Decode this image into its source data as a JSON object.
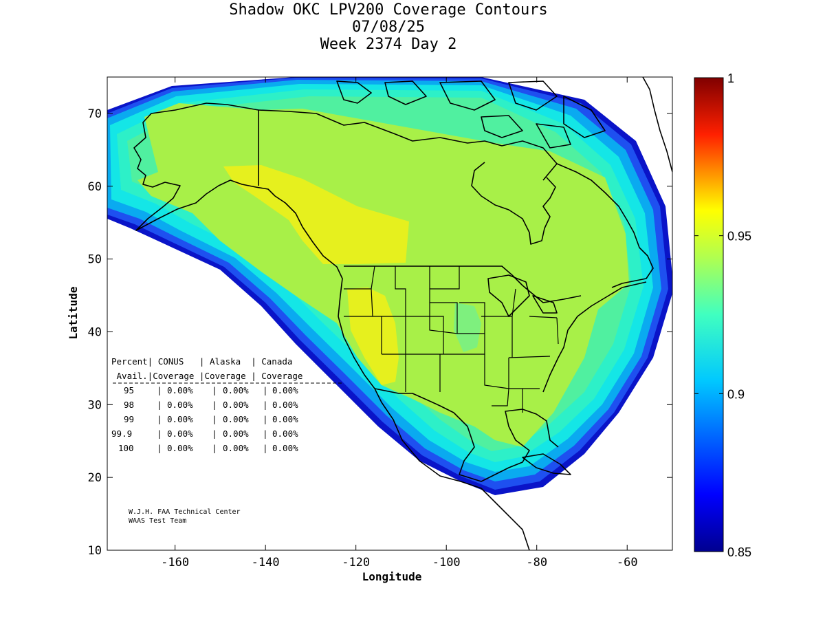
{
  "title": {
    "line1": "Shadow OKC LPV200 Coverage Contours",
    "line2": "07/08/25",
    "line3": "Week 2374 Day 2"
  },
  "axes": {
    "xlabel": "Longitude",
    "ylabel": "Latitude",
    "xlim": [
      -175,
      -50
    ],
    "ylim": [
      10,
      75
    ],
    "xticks": [
      -160,
      -140,
      -120,
      -100,
      -80,
      -60
    ],
    "yticks": [
      10,
      20,
      30,
      40,
      50,
      60,
      70
    ],
    "xtick_labels": [
      "-160",
      "-140",
      "-120",
      "-100",
      "-80",
      "-60"
    ],
    "ytick_labels": [
      "10",
      "20",
      "30",
      "40",
      "50",
      "60",
      "70"
    ]
  },
  "colorbar": {
    "min": 0.85,
    "max": 1.0,
    "ticks": [
      "0.85",
      "0.9",
      "0.95",
      "1"
    ],
    "tick_values": [
      0.85,
      0.9,
      0.95,
      1.0
    ]
  },
  "table": {
    "header1": "Percent| CONUS   | Alaska  | Canada",
    "header2": " Avail.|Coverage |Coverage | Coverage",
    "rows": [
      {
        "avail": "95",
        "conus": "0.00%",
        "alaska": "0.00%",
        "canada": "0.00%"
      },
      {
        "avail": "98",
        "conus": "0.00%",
        "alaska": "0.00%",
        "canada": "0.00%"
      },
      {
        "avail": "99",
        "conus": "0.00%",
        "alaska": "0.00%",
        "canada": "0.00%"
      },
      {
        "avail": "99.9",
        "conus": "0.00%",
        "alaska": "0.00%",
        "canada": "0.00%"
      },
      {
        "avail": "100",
        "conus": "0.00%",
        "alaska": "0.00%",
        "canada": "0.00%"
      }
    ]
  },
  "credit": {
    "line1": "W.J.H. FAA Technical Center",
    "line2": "WAAS Test Team"
  },
  "colors": {
    "band_outer_dark": "#0a14c8",
    "band_blue": "#1e50f0",
    "band_sky": "#0aaaf0",
    "band_cyan": "#14e6e6",
    "band_aqua": "#2df0c8",
    "band_green": "#50f0a0",
    "band_lime": "#a8f048",
    "band_yellow": "#e6f01e"
  }
}
